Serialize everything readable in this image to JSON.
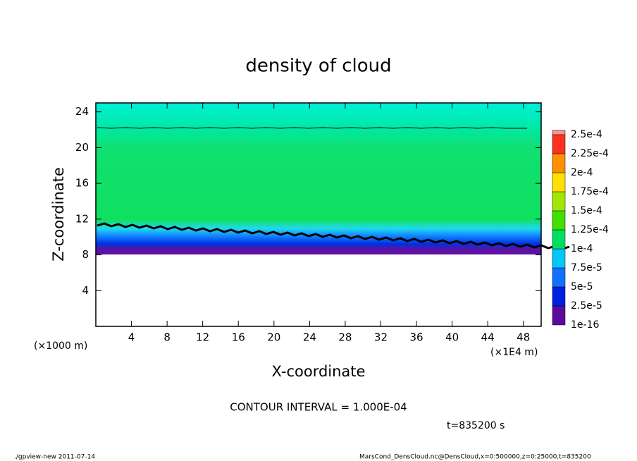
{
  "chart_data": {
    "type": "contour",
    "title": "density of cloud",
    "x_label": "X-coordinate",
    "y_label": "Z-coordinate",
    "y_unit": "(×1000 m)",
    "x_unit": "(×1E4 m)",
    "xlim": [
      0,
      50
    ],
    "xticks": [
      4,
      8,
      12,
      16,
      20,
      24,
      28,
      32,
      36,
      40,
      44,
      48
    ],
    "ylim": [
      0,
      25
    ],
    "yticks": [
      4,
      8,
      12,
      16,
      20,
      24
    ],
    "colorbar": {
      "levels": [
        1e-16,
        {
          "value": 2.5e-05,
          "label": "2.5e-5"
        },
        {
          "value": 5e-05,
          "label": "5e-5"
        },
        {
          "value": 7.5e-05,
          "label": "7.5e-5"
        },
        {
          "value": 0.0001,
          "label": "1e-4"
        },
        {
          "value": 0.000125,
          "label": "1.25e-4"
        },
        {
          "value": 0.00015,
          "label": "1.5e-4"
        },
        {
          "value": 0.000175,
          "label": "1.75e-4"
        },
        {
          "value": 0.0002,
          "label": "2e-4"
        },
        {
          "value": 0.000225,
          "label": "2.25e-4"
        },
        {
          "value": 0.00025,
          "label": "2.5e-4"
        }
      ],
      "colors": [
        "#5a0aa0",
        "#0020e0",
        "#1070ff",
        "#00c8f8",
        "#00e060",
        "#40e000",
        "#a0e800",
        "#ffe000",
        "#ff9000",
        "#ff3020",
        "#ff9090"
      ]
    },
    "contour_interval": "CONTOUR INTERVAL = 1.000E-04",
    "time_label": "t=835200 s",
    "footer_left": "./gpview-new  2011-07-14",
    "footer_right": "MarsCond_DensCloud.nc@DensCloud,x=0:500000,z=0:25000,t=835200"
  }
}
